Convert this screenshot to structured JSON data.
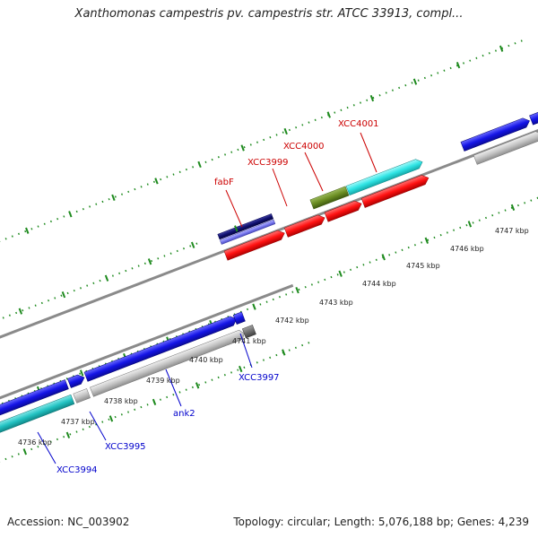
{
  "title": "Xanthomonas campestris pv. campestris str. ATCC 33913, compl...",
  "footer": {
    "accession": "Accession: NC_003902",
    "topology": "Topology: circular; Length: 5,076,188 bp; Genes: 4,239"
  },
  "colors": {
    "forward_gene": "#1010e0",
    "reverse_gene": "#c8c8c8",
    "highlight_red": "#ff1a1a",
    "highlight_cyan": "#33e0e0",
    "highlight_green": "#6b8e23",
    "highlight_navy": "#101070",
    "label_red": "#cc0000",
    "label_blue": "#0000cc",
    "backbone": "#8a8a8a",
    "ticks": "#1e8a1e"
  },
  "scale_labels": [
    "4736 kbp",
    "4737 kbp",
    "4738 kbp",
    "4739 kbp",
    "4740 kbp",
    "4741 kbp",
    "4742 kbp",
    "4743 kbp",
    "4744 kbp",
    "4745 kbp",
    "4746 kbp",
    "4747 kbp"
  ],
  "gene_labels_top": [
    "fabF",
    "XCC3999",
    "XCC4000",
    "XCC4001"
  ],
  "gene_labels_bottom": [
    "XCC3994",
    "XCC3995",
    "ank2",
    "XCC3997"
  ]
}
